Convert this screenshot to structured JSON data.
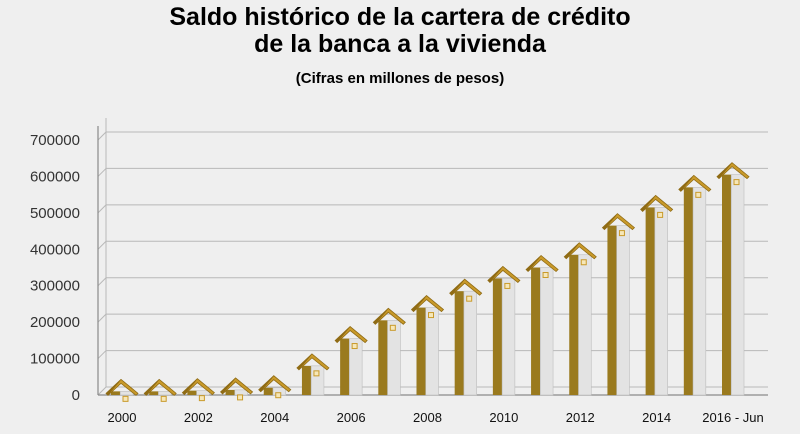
{
  "chart_data": {
    "type": "bar",
    "title": "Saldo histórico de la cartera de crédito\nde la banca a la vivienda",
    "subtitle": "(Cifras en millones de pesos)",
    "xlabel": "",
    "ylabel": "",
    "ylim": [
      0,
      700000
    ],
    "yticks": [
      "0",
      "100000",
      "200000",
      "300000",
      "400000",
      "500000",
      "600000",
      "700000"
    ],
    "ytick_values": [
      0,
      100000,
      200000,
      300000,
      400000,
      500000,
      600000,
      700000
    ],
    "categories": [
      "2000",
      "2001",
      "2002",
      "2003",
      "2004",
      "2005",
      "2006",
      "2007",
      "2008",
      "2009",
      "2010",
      "2011",
      "2012",
      "2013",
      "2014",
      "2015",
      "2016 - Jun"
    ],
    "xtick_labels": [
      "2000",
      "2002",
      "2004",
      "2006",
      "2008",
      "2010",
      "2012",
      "2014",
      "2016 - Jun"
    ],
    "values": [
      10000,
      10000,
      12000,
      14000,
      20000,
      80000,
      155000,
      205000,
      240000,
      285000,
      320000,
      350000,
      385000,
      465000,
      515000,
      570000,
      605000
    ],
    "grid": true,
    "legend": "none",
    "colors": {
      "bar_front": "#e3e3e3",
      "bar_side": "#9a7a1e",
      "roof": "#c99a2a",
      "roof_dark": "#8f6b14",
      "grid": "#b8b8b8",
      "axis": "#8a8a8a"
    }
  }
}
